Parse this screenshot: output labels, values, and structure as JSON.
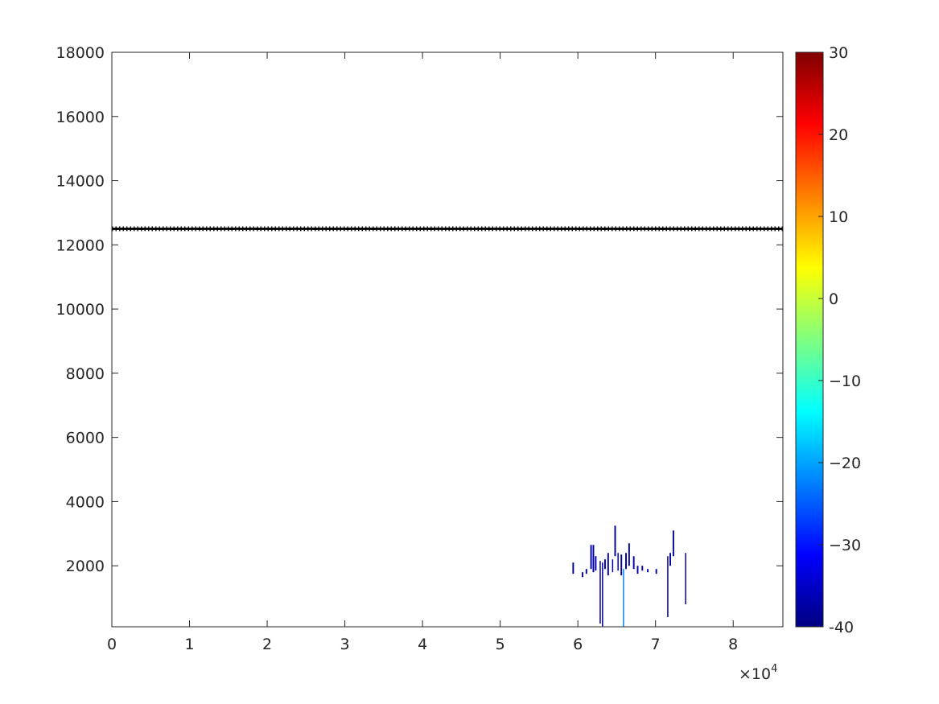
{
  "chart_data": {
    "type": "heatmap",
    "title": "",
    "xlabel": "",
    "ylabel": "",
    "xlim": [
      0,
      86400
    ],
    "ylim": [
      100,
      18000
    ],
    "x_ticks": [
      0,
      10000,
      20000,
      30000,
      40000,
      50000,
      60000,
      70000,
      80000
    ],
    "x_tick_labels": [
      "0",
      "1",
      "2",
      "3",
      "4",
      "5",
      "6",
      "7",
      "8"
    ],
    "x_exponent_label": {
      "base": "×10",
      "exp": "4"
    },
    "y_ticks": [
      2000,
      4000,
      6000,
      8000,
      10000,
      12000,
      14000,
      16000,
      18000
    ],
    "y_tick_labels": [
      "2000",
      "4000",
      "6000",
      "8000",
      "10000",
      "12000",
      "14000",
      "16000",
      "18000"
    ],
    "colorbar": {
      "colormap": "jet",
      "clim": [
        -40,
        30
      ],
      "ticks": [
        -40,
        -30,
        -20,
        -10,
        0,
        10,
        20,
        30
      ],
      "tick_labels": [
        "-40",
        "−30",
        "−20",
        "−10",
        "0",
        "10",
        "20",
        "30"
      ]
    },
    "reference_line": {
      "y": 12500,
      "x_range": [
        0,
        86400
      ],
      "color": "#000000",
      "style": "marker-line"
    },
    "cells": [
      {
        "x0": 59300,
        "x1": 59500,
        "y0": 1750,
        "y1": 2100,
        "v": -38
      },
      {
        "x0": 60500,
        "x1": 60700,
        "y0": 1650,
        "y1": 1800,
        "v": -36
      },
      {
        "x0": 61000,
        "x1": 61200,
        "y0": 1750,
        "y1": 1900,
        "v": -38
      },
      {
        "x0": 61600,
        "x1": 61800,
        "y0": 1900,
        "y1": 2650,
        "v": -37
      },
      {
        "x0": 61900,
        "x1": 62100,
        "y0": 1800,
        "y1": 2650,
        "v": -38
      },
      {
        "x0": 62200,
        "x1": 62400,
        "y0": 1850,
        "y1": 2300,
        "v": -36
      },
      {
        "x0": 62800,
        "x1": 62950,
        "y0": 200,
        "y1": 2150,
        "v": -38
      },
      {
        "x0": 63100,
        "x1": 63250,
        "y0": 100,
        "y1": 2100,
        "v": -37
      },
      {
        "x0": 63400,
        "x1": 63600,
        "y0": 1900,
        "y1": 2200,
        "v": -36
      },
      {
        "x0": 63800,
        "x1": 64000,
        "y0": 1700,
        "y1": 2400,
        "v": -38
      },
      {
        "x0": 64400,
        "x1": 64550,
        "y0": 1800,
        "y1": 2200,
        "v": -37
      },
      {
        "x0": 64700,
        "x1": 64900,
        "y0": 2300,
        "y1": 3250,
        "v": -38
      },
      {
        "x0": 65100,
        "x1": 65250,
        "y0": 1850,
        "y1": 2400,
        "v": -36
      },
      {
        "x0": 65500,
        "x1": 65700,
        "y0": 1700,
        "y1": 2350,
        "v": -38
      },
      {
        "x0": 65800,
        "x1": 65950,
        "y0": 100,
        "y1": 1900,
        "v": -22
      },
      {
        "x0": 66100,
        "x1": 66300,
        "y0": 1900,
        "y1": 2400,
        "v": -37
      },
      {
        "x0": 66500,
        "x1": 66700,
        "y0": 2000,
        "y1": 2700,
        "v": -38
      },
      {
        "x0": 67100,
        "x1": 67300,
        "y0": 1900,
        "y1": 2300,
        "v": -36
      },
      {
        "x0": 67600,
        "x1": 67800,
        "y0": 1750,
        "y1": 2000,
        "v": -37
      },
      {
        "x0": 68200,
        "x1": 68400,
        "y0": 1850,
        "y1": 2000,
        "v": -38
      },
      {
        "x0": 68900,
        "x1": 69100,
        "y0": 1800,
        "y1": 1900,
        "v": -36
      },
      {
        "x0": 70000,
        "x1": 70200,
        "y0": 1750,
        "y1": 1900,
        "v": -37
      },
      {
        "x0": 71500,
        "x1": 71650,
        "y0": 400,
        "y1": 2300,
        "v": -38
      },
      {
        "x0": 71800,
        "x1": 72000,
        "y0": 2000,
        "y1": 2400,
        "v": -37
      },
      {
        "x0": 72200,
        "x1": 72400,
        "y0": 2300,
        "y1": 3100,
        "v": -38
      },
      {
        "x0": 73800,
        "x1": 73950,
        "y0": 800,
        "y1": 2400,
        "v": -37
      }
    ]
  }
}
